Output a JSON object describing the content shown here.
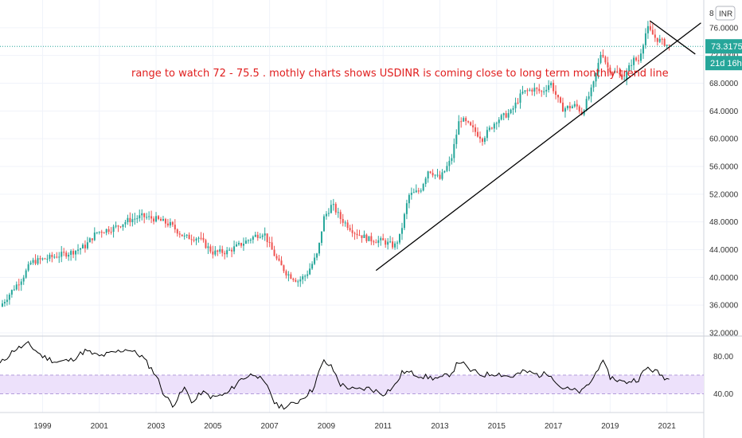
{
  "header": {
    "currency_badge": "INR",
    "top_label": "8"
  },
  "annotation": "range to watch 72 - 75.5 . mothly charts shows USDINR is coming close to long term monthly trend line",
  "price_badge": {
    "value": "73.3175",
    "countdown": "21d 16h",
    "color": "#26a69a"
  },
  "colors": {
    "up": "#26a69a",
    "down": "#ef5350",
    "rsi_band": "#ede1fb",
    "rsi_band_edge": "#b39ddb",
    "trend_line": "#000000",
    "rsi_line": "#000000"
  },
  "chart_data": [
    {
      "type": "candlestick",
      "title": "",
      "ylim": [
        32,
        80
      ],
      "xlim": [
        1997.5,
        2022.3
      ],
      "yticks": [
        "32.0000",
        "36.0000",
        "40.0000",
        "44.0000",
        "48.0000",
        "52.0000",
        "56.0000",
        "60.0000",
        "64.0000",
        "68.0000",
        "72.0000",
        "76.0000"
      ],
      "xticks": [
        "1999",
        "2001",
        "2003",
        "2005",
        "2007",
        "2009",
        "2011",
        "2013",
        "2015",
        "2017",
        "2019",
        "2021"
      ],
      "current_price": 73.3175,
      "trend_lines": [
        {
          "from": [
            2010.75,
            41.0
          ],
          "to": [
            2022.2,
            76.7
          ]
        },
        {
          "from": [
            2020.4,
            77.0
          ],
          "to": [
            2022.0,
            72.2
          ]
        }
      ],
      "close_path": [
        [
          1997.5,
          35.8
        ],
        [
          1998.0,
          38.5
        ],
        [
          1998.3,
          40.0
        ],
        [
          1998.6,
          42.2
        ],
        [
          1999.0,
          42.6
        ],
        [
          1999.6,
          43.2
        ],
        [
          2000.0,
          43.6
        ],
        [
          2000.5,
          44.5
        ],
        [
          2000.9,
          46.5
        ],
        [
          2001.5,
          47.1
        ],
        [
          2002.0,
          48.2
        ],
        [
          2002.5,
          48.8
        ],
        [
          2003.0,
          48.4
        ],
        [
          2003.5,
          47.6
        ],
        [
          2004.0,
          45.8
        ],
        [
          2004.5,
          45.7
        ],
        [
          2004.8,
          44.4
        ],
        [
          2005.0,
          43.6
        ],
        [
          2005.5,
          43.7
        ],
        [
          2006.0,
          44.8
        ],
        [
          2006.5,
          46.0
        ],
        [
          2006.8,
          46.5
        ],
        [
          2007.0,
          44.6
        ],
        [
          2007.3,
          42.2
        ],
        [
          2007.6,
          40.6
        ],
        [
          2008.0,
          39.5
        ],
        [
          2008.3,
          40.4
        ],
        [
          2008.7,
          43.5
        ],
        [
          2008.9,
          48.5
        ],
        [
          2009.2,
          50.5
        ],
        [
          2009.5,
          48.5
        ],
        [
          2010.0,
          46.5
        ],
        [
          2010.5,
          45.5
        ],
        [
          2011.0,
          45.2
        ],
        [
          2011.4,
          44.5
        ],
        [
          2011.6,
          46.0
        ],
        [
          2011.9,
          51.8
        ],
        [
          2012.3,
          52.5
        ],
        [
          2012.6,
          55.6
        ],
        [
          2013.0,
          54.2
        ],
        [
          2013.4,
          57.0
        ],
        [
          2013.7,
          63.0
        ],
        [
          2014.0,
          62.0
        ],
        [
          2014.5,
          60.0
        ],
        [
          2015.0,
          62.7
        ],
        [
          2015.5,
          63.8
        ],
        [
          2015.9,
          66.6
        ],
        [
          2016.3,
          67.2
        ],
        [
          2016.6,
          66.7
        ],
        [
          2016.9,
          68.1
        ],
        [
          2017.3,
          64.3
        ],
        [
          2017.8,
          64.8
        ],
        [
          2018.0,
          63.7
        ],
        [
          2018.4,
          67.6
        ],
        [
          2018.7,
          72.8
        ],
        [
          2018.9,
          70.3
        ],
        [
          2019.2,
          69.5
        ],
        [
          2019.5,
          68.8
        ],
        [
          2019.8,
          71.4
        ],
        [
          2020.0,
          71.3
        ],
        [
          2020.3,
          76.0
        ],
        [
          2020.6,
          74.5
        ],
        [
          2020.9,
          73.8
        ],
        [
          2021.1,
          73.3
        ]
      ]
    },
    {
      "type": "line",
      "title": "",
      "ylim": [
        20,
        100
      ],
      "yticks": [
        "80.00",
        "40.00"
      ],
      "band": [
        40,
        60
      ],
      "series": [
        {
          "values": [
            [
              1997.5,
              72
            ],
            [
              1998.0,
              87
            ],
            [
              1998.5,
              93
            ],
            [
              1999.0,
              80
            ],
            [
              1999.5,
              74
            ],
            [
              2000.0,
              76
            ],
            [
              2000.5,
              86
            ],
            [
              2001.0,
              80
            ],
            [
              2001.5,
              84
            ],
            [
              2002.0,
              88
            ],
            [
              2002.5,
              80
            ],
            [
              2003.0,
              60
            ],
            [
              2003.3,
              38
            ],
            [
              2003.6,
              28
            ],
            [
              2004.0,
              46
            ],
            [
              2004.3,
              30
            ],
            [
              2004.6,
              42
            ],
            [
              2005.0,
              36
            ],
            [
              2005.5,
              40
            ],
            [
              2006.0,
              56
            ],
            [
              2006.5,
              62
            ],
            [
              2007.0,
              44
            ],
            [
              2007.2,
              28
            ],
            [
              2007.6,
              26
            ],
            [
              2008.0,
              32
            ],
            [
              2008.5,
              44
            ],
            [
              2008.9,
              75
            ],
            [
              2009.2,
              68
            ],
            [
              2009.5,
              50
            ],
            [
              2010.0,
              44
            ],
            [
              2010.5,
              46
            ],
            [
              2011.0,
              40
            ],
            [
              2011.4,
              48
            ],
            [
              2011.7,
              64
            ],
            [
              2012.0,
              62
            ],
            [
              2012.5,
              58
            ],
            [
              2013.0,
              56
            ],
            [
              2013.4,
              62
            ],
            [
              2013.7,
              76
            ],
            [
              2014.0,
              66
            ],
            [
              2014.5,
              60
            ],
            [
              2015.0,
              62
            ],
            [
              2015.5,
              58
            ],
            [
              2016.0,
              64
            ],
            [
              2016.5,
              60
            ],
            [
              2016.9,
              62
            ],
            [
              2017.2,
              48
            ],
            [
              2017.6,
              44
            ],
            [
              2018.0,
              42
            ],
            [
              2018.4,
              56
            ],
            [
              2018.7,
              76
            ],
            [
              2019.0,
              58
            ],
            [
              2019.5,
              52
            ],
            [
              2020.0,
              56
            ],
            [
              2020.3,
              68
            ],
            [
              2020.6,
              64
            ],
            [
              2020.9,
              58
            ],
            [
              2021.1,
              55
            ]
          ]
        }
      ]
    }
  ]
}
